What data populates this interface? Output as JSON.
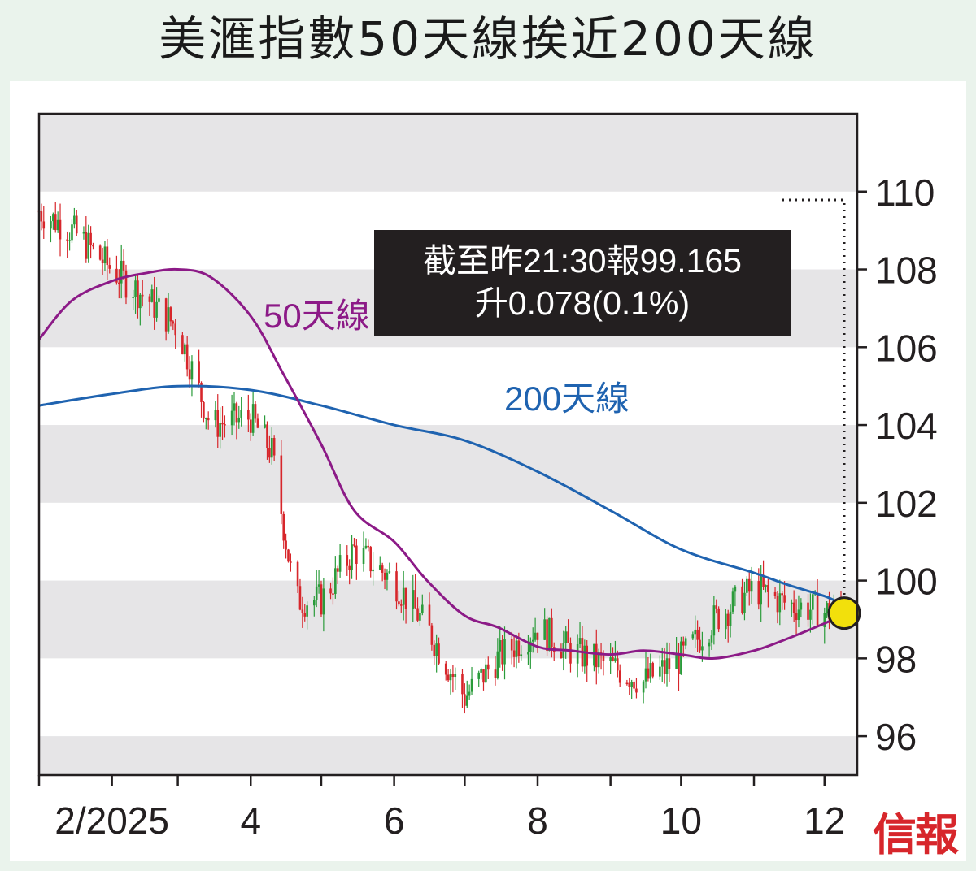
{
  "title": "美滙指數50天線挨近200天線",
  "callout": {
    "line1": "截至昨21:30報99.165",
    "line2": "升0.078(0.1%)"
  },
  "watermark": "信報",
  "colors": {
    "background": "#eaf3ec",
    "band": "#e6e5e7",
    "candle_up": "#2a9b3a",
    "candle_down": "#d7262b",
    "ma50": "#8c1a87",
    "ma200": "#1f63b0",
    "marker": "#f2e00c"
  },
  "chart_data": {
    "type": "candlestick",
    "title": "美滙指數50天線挨近200天線",
    "xlabel": "",
    "ylabel": "",
    "x_ticks": [
      "2/2025",
      "4",
      "6",
      "8",
      "10",
      "12"
    ],
    "y_ticks": [
      96,
      98,
      100,
      102,
      104,
      106,
      108,
      110
    ],
    "ylim": [
      95,
      112
    ],
    "grid": "horizontal bands",
    "series": [
      {
        "name": "50天線",
        "points": [
          [
            "2025-01-01",
            106.2
          ],
          [
            "2025-01-15",
            107.2
          ],
          [
            "2025-02-01",
            107.7
          ],
          [
            "2025-02-15",
            107.9
          ],
          [
            "2025-03-01",
            108.0
          ],
          [
            "2025-03-15",
            107.8
          ],
          [
            "2025-04-01",
            106.8
          ],
          [
            "2025-04-15",
            105.3
          ],
          [
            "2025-05-01",
            103.5
          ],
          [
            "2025-05-15",
            101.8
          ],
          [
            "2025-06-01",
            101.0
          ],
          [
            "2025-06-15",
            100.0
          ],
          [
            "2025-07-01",
            99.1
          ],
          [
            "2025-07-15",
            98.8
          ],
          [
            "2025-08-01",
            98.3
          ],
          [
            "2025-08-15",
            98.2
          ],
          [
            "2025-09-01",
            98.1
          ],
          [
            "2025-09-15",
            98.2
          ],
          [
            "2025-10-01",
            98.1
          ],
          [
            "2025-10-15",
            98.0
          ],
          [
            "2025-11-01",
            98.2
          ],
          [
            "2025-11-15",
            98.5
          ],
          [
            "2025-12-01",
            98.9
          ],
          [
            "2025-12-08",
            99.1
          ]
        ]
      },
      {
        "name": "200天線",
        "points": [
          [
            "2025-01-01",
            104.5
          ],
          [
            "2025-02-01",
            104.8
          ],
          [
            "2025-03-01",
            105.0
          ],
          [
            "2025-04-01",
            104.9
          ],
          [
            "2025-05-01",
            104.5
          ],
          [
            "2025-06-01",
            104.0
          ],
          [
            "2025-07-01",
            103.6
          ],
          [
            "2025-08-01",
            102.8
          ],
          [
            "2025-09-01",
            101.8
          ],
          [
            "2025-10-01",
            100.8
          ],
          [
            "2025-11-01",
            100.2
          ],
          [
            "2025-11-15",
            99.9
          ],
          [
            "2025-12-01",
            99.6
          ],
          [
            "2025-12-08",
            99.4
          ]
        ]
      },
      {
        "name": "美滙指數",
        "anchors": [
          [
            "2025-01-01",
            109.5
          ],
          [
            "2025-01-15",
            109.0
          ],
          [
            "2025-02-01",
            108.0
          ],
          [
            "2025-02-15",
            107.3
          ],
          [
            "2025-03-01",
            106.5
          ],
          [
            "2025-03-15",
            104.0
          ],
          [
            "2025-04-01",
            104.2
          ],
          [
            "2025-04-10",
            103.3
          ],
          [
            "2025-04-20",
            99.5
          ],
          [
            "2025-05-01",
            99.5
          ],
          [
            "2025-05-15",
            100.8
          ],
          [
            "2025-06-01",
            100.0
          ],
          [
            "2025-06-15",
            98.8
          ],
          [
            "2025-07-01",
            97.0
          ],
          [
            "2025-07-15",
            98.0
          ],
          [
            "2025-08-01",
            98.8
          ],
          [
            "2025-08-15",
            98.2
          ],
          [
            "2025-09-01",
            97.8
          ],
          [
            "2025-09-15",
            97.4
          ],
          [
            "2025-10-01",
            98.0
          ],
          [
            "2025-10-15",
            99.0
          ],
          [
            "2025-11-01",
            99.8
          ],
          [
            "2025-11-15",
            99.4
          ],
          [
            "2025-12-01",
            99.2
          ],
          [
            "2025-12-08",
            99.165
          ]
        ]
      }
    ],
    "last_value": 99.165,
    "change": 0.078,
    "change_pct": "0.1%"
  }
}
